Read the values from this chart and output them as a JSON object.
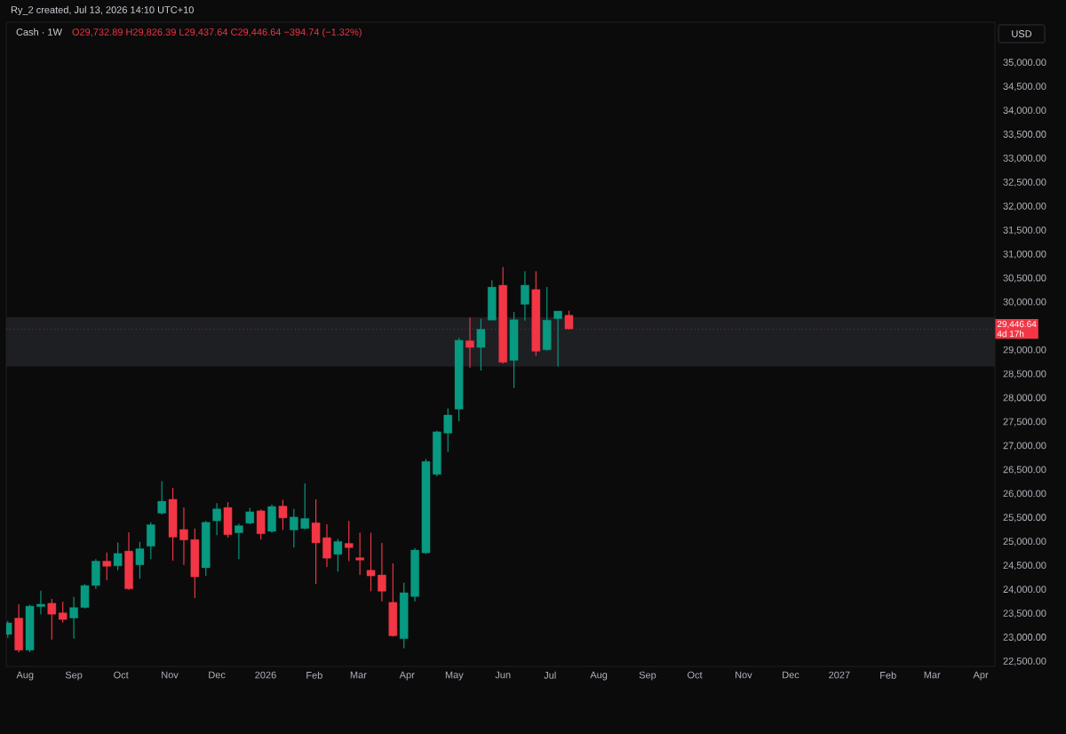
{
  "chart_data": {
    "type": "candlestick",
    "title": "Cash · 1W",
    "subtitle": "O29,732.89  H29,826.39  L29,437.64  C29,446.64  −394.74 (−1.32%)",
    "annotations": [
      "Ry_2 created, Jul 13, 2026 14:10 UTC+10",
      "USD",
      "4d 17h"
    ],
    "x": [
      "2025-07-21",
      "2025-07-28",
      "2025-08-04",
      "2025-08-11",
      "2025-08-18",
      "2025-08-25",
      "2025-09-01",
      "2025-09-08",
      "2025-09-15",
      "2025-09-22",
      "2025-09-29",
      "2025-10-06",
      "2025-10-13",
      "2025-10-20",
      "2025-10-27",
      "2025-11-03",
      "2025-11-10",
      "2025-11-17",
      "2025-11-24",
      "2025-12-01",
      "2025-12-08",
      "2025-12-15",
      "2025-12-22",
      "2025-12-29",
      "2026-01-05",
      "2026-01-12",
      "2026-01-19",
      "2026-01-26",
      "2026-02-02",
      "2026-02-09",
      "2026-02-16",
      "2026-02-23",
      "2026-03-02",
      "2026-03-09",
      "2026-03-16",
      "2026-03-23",
      "2026-03-30",
      "2026-04-06",
      "2026-04-13",
      "2026-04-20",
      "2026-04-27",
      "2026-05-04",
      "2026-05-11",
      "2026-05-18",
      "2026-05-25",
      "2026-06-01",
      "2026-06-08",
      "2026-06-15",
      "2026-06-22",
      "2026-06-29",
      "2026-07-06",
      "2026-07-13"
    ],
    "ohlc": [
      [
        23070,
        23350,
        23000,
        23310
      ],
      [
        23410,
        23700,
        22690,
        22740
      ],
      [
        22740,
        23690,
        22700,
        23660
      ],
      [
        23650,
        23980,
        23490,
        23700
      ],
      [
        23720,
        23810,
        22960,
        23490
      ],
      [
        23520,
        23750,
        23320,
        23380
      ],
      [
        23410,
        23850,
        22980,
        23630
      ],
      [
        23630,
        24120,
        23610,
        24090
      ],
      [
        24090,
        24640,
        24020,
        24600
      ],
      [
        24600,
        24780,
        24200,
        24490
      ],
      [
        24500,
        24990,
        24410,
        24760
      ],
      [
        24810,
        25200,
        24000,
        24020
      ],
      [
        24520,
        25000,
        24230,
        24860
      ],
      [
        24910,
        25410,
        24640,
        25360
      ],
      [
        25600,
        26270,
        25570,
        25850
      ],
      [
        25890,
        26130,
        24610,
        25100
      ],
      [
        25260,
        25720,
        24520,
        25040
      ],
      [
        25050,
        25280,
        23830,
        24270
      ],
      [
        24460,
        25440,
        24290,
        25410
      ],
      [
        25440,
        25810,
        25140,
        25690
      ],
      [
        25720,
        25830,
        25090,
        25150
      ],
      [
        25190,
        25380,
        24640,
        25340
      ],
      [
        25390,
        25710,
        25370,
        25630
      ],
      [
        25650,
        25680,
        25050,
        25170
      ],
      [
        25220,
        25780,
        25190,
        25740
      ],
      [
        25750,
        25880,
        25250,
        25500
      ],
      [
        25250,
        25690,
        24880,
        25520
      ],
      [
        25280,
        26220,
        25260,
        25490
      ],
      [
        25400,
        25890,
        24120,
        24980
      ],
      [
        25090,
        25370,
        24480,
        24660
      ],
      [
        24740,
        25060,
        24380,
        25010
      ],
      [
        24970,
        25440,
        24600,
        24880
      ],
      [
        24670,
        25190,
        24310,
        24620
      ],
      [
        24410,
        25190,
        23970,
        24290
      ],
      [
        24310,
        24980,
        23760,
        23970
      ],
      [
        23740,
        24550,
        23020,
        23040
      ],
      [
        22980,
        24150,
        22780,
        23940
      ],
      [
        23860,
        24870,
        23760,
        24830
      ],
      [
        24770,
        26730,
        24750,
        26680
      ],
      [
        26410,
        27320,
        26370,
        27300
      ],
      [
        27270,
        27790,
        26880,
        27650
      ],
      [
        27770,
        29260,
        27520,
        29210
      ],
      [
        29200,
        29680,
        28640,
        29060
      ],
      [
        29060,
        29660,
        28580,
        29440
      ],
      [
        29630,
        30460,
        29630,
        30320
      ],
      [
        30360,
        30740,
        28720,
        28750
      ],
      [
        28790,
        29800,
        28210,
        29640
      ],
      [
        29960,
        30650,
        29620,
        30360
      ],
      [
        30270,
        30650,
        28890,
        28980
      ],
      [
        29010,
        30320,
        28990,
        29630
      ],
      [
        29660,
        29820,
        28660,
        29820
      ],
      [
        29732.89,
        29826.39,
        29437.64,
        29446.64
      ]
    ],
    "colors": [
      "#089981",
      "#f23645",
      "#089981",
      "#089981",
      "#f23645",
      "#f23645",
      "#089981",
      "#089981",
      "#089981",
      "#f23645",
      "#089981",
      "#f23645",
      "#089981",
      "#089981",
      "#089981",
      "#f23645",
      "#f23645",
      "#f23645",
      "#089981",
      "#089981",
      "#f23645",
      "#089981",
      "#089981",
      "#f23645",
      "#089981",
      "#f23645",
      "#089981",
      "#089981",
      "#f23645",
      "#f23645",
      "#089981",
      "#f23645",
      "#f23645",
      "#f23645",
      "#f23645",
      "#f23645",
      "#089981",
      "#089981",
      "#089981",
      "#089981",
      "#089981",
      "#089981",
      "#f23645",
      "#089981",
      "#089981",
      "#f23645",
      "#089981",
      "#089981",
      "#f23645",
      "#089981",
      "#089981",
      "#f23645"
    ],
    "xlim": [
      "2025-07-20",
      "2027-04-10"
    ],
    "xticks": [
      {
        "value": "2025-08-01",
        "label": "Aug"
      },
      {
        "value": "2025-09-01",
        "label": "Sep"
      },
      {
        "value": "2025-10-01",
        "label": "Oct"
      },
      {
        "value": "2025-11-01",
        "label": "Nov"
      },
      {
        "value": "2025-12-01",
        "label": "Dec"
      },
      {
        "value": "2026-01-01",
        "label": "2026"
      },
      {
        "value": "2026-02-01",
        "label": "Feb"
      },
      {
        "value": "2026-03-01",
        "label": "Mar"
      },
      {
        "value": "2026-04-01",
        "label": "Apr"
      },
      {
        "value": "2026-05-01",
        "label": "May"
      },
      {
        "value": "2026-06-01",
        "label": "Jun"
      },
      {
        "value": "2026-07-01",
        "label": "Jul"
      },
      {
        "value": "2026-08-01",
        "label": "Aug"
      },
      {
        "value": "2026-09-01",
        "label": "Sep"
      },
      {
        "value": "2026-10-01",
        "label": "Oct"
      },
      {
        "value": "2026-11-01",
        "label": "Nov"
      },
      {
        "value": "2026-12-01",
        "label": "Dec"
      },
      {
        "value": "2027-01-01",
        "label": "2027"
      },
      {
        "value": "2027-02-01",
        "label": "Feb"
      },
      {
        "value": "2027-03-01",
        "label": "Mar"
      },
      {
        "value": "2027-04-01",
        "label": "Apr"
      }
    ],
    "ylim": [
      22400,
      35850
    ],
    "yticks": [
      {
        "value": 22500,
        "label": "22,500.00"
      },
      {
        "value": 23000,
        "label": "23,000.00"
      },
      {
        "value": 23500,
        "label": "23,500.00"
      },
      {
        "value": 24000,
        "label": "24,000.00"
      },
      {
        "value": 24500,
        "label": "24,500.00"
      },
      {
        "value": 25000,
        "label": "25,000.00"
      },
      {
        "value": 25500,
        "label": "25,500.00"
      },
      {
        "value": 26000,
        "label": "26,000.00"
      },
      {
        "value": 26500,
        "label": "26,500.00"
      },
      {
        "value": 27000,
        "label": "27,000.00"
      },
      {
        "value": 27500,
        "label": "27,500.00"
      },
      {
        "value": 28000,
        "label": "28,000.00"
      },
      {
        "value": 28500,
        "label": "28,500.00"
      },
      {
        "value": 29000,
        "label": "29,000.00"
      },
      {
        "value": 30000,
        "label": "30,000.00"
      },
      {
        "value": 30500,
        "label": "30,500.00"
      },
      {
        "value": 31000,
        "label": "31,000.00"
      },
      {
        "value": 31500,
        "label": "31,500.00"
      },
      {
        "value": 32000,
        "label": "32,000.00"
      },
      {
        "value": 32500,
        "label": "32,500.00"
      },
      {
        "value": 33000,
        "label": "33,000.00"
      },
      {
        "value": 33500,
        "label": "33,500.00"
      },
      {
        "value": 34000,
        "label": "34,000.00"
      },
      {
        "value": 34500,
        "label": "34,500.00"
      },
      {
        "value": 35000,
        "label": "35,000.00"
      }
    ],
    "bands": [
      {
        "axis": "y",
        "from": 28660,
        "to": 29690,
        "color": "#1e1f22"
      }
    ],
    "ref_lines": [
      {
        "axis": "y",
        "value": 29446.64,
        "label": "29,446.64",
        "color": "#f23645",
        "line_style": "dotted"
      }
    ]
  }
}
